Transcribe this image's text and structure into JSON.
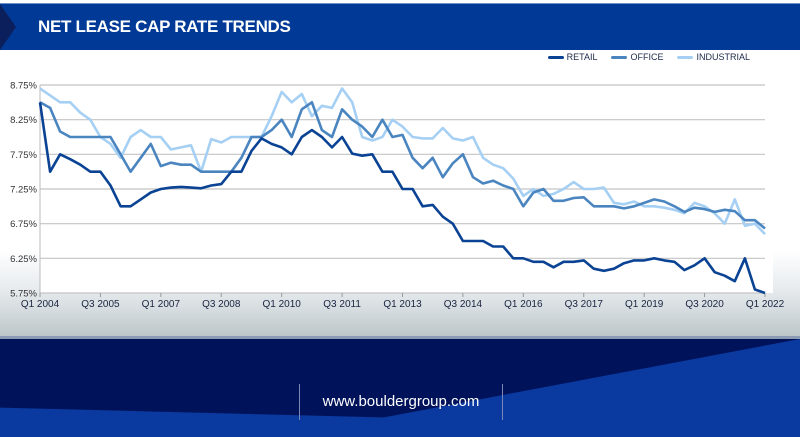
{
  "title": "NET LEASE CAP RATE TRENDS",
  "footer_url": "www.bouldergroup.com",
  "colors": {
    "retail": "#0b4394",
    "office": "#4b85c0",
    "industrial": "#a6d0f3",
    "title_bar": "#003a96",
    "footer": "#00135a"
  },
  "chart_data": {
    "type": "line",
    "title": "NET LEASE CAP RATE TRENDS",
    "xlabel": "",
    "ylabel": "",
    "ylim": [
      5.75,
      8.75
    ],
    "yticks": [
      5.75,
      6.25,
      6.75,
      7.25,
      7.75,
      8.25,
      8.75
    ],
    "ytick_labels": [
      "5.75%",
      "6.25%",
      "6.75%",
      "7.25%",
      "7.75%",
      "8.25%",
      "8.75%"
    ],
    "x_start": "Q1 2004",
    "x_end": "Q1 2022",
    "x_frequency": "quarterly",
    "xtick_labels": [
      "Q1 2004",
      "Q3 2005",
      "Q1 2007",
      "Q3 2008",
      "Q1 2010",
      "Q3 2011",
      "Q1 2013",
      "Q3 2014",
      "Q1 2016",
      "Q3 2017",
      "Q1 2019",
      "Q3 2020",
      "Q1 2022"
    ],
    "grid": true,
    "legend_position": "top-right",
    "series": [
      {
        "name": "RETAIL",
        "values": [
          8.5,
          7.5,
          7.75,
          7.68,
          7.6,
          7.5,
          7.5,
          7.3,
          7.0,
          7.0,
          7.1,
          7.2,
          7.25,
          7.27,
          7.28,
          7.27,
          7.26,
          7.3,
          7.32,
          7.5,
          7.5,
          7.8,
          7.98,
          7.9,
          7.85,
          7.75,
          8.0,
          8.1,
          8.0,
          7.85,
          8.0,
          7.76,
          7.73,
          7.75,
          7.5,
          7.5,
          7.25,
          7.25,
          7.0,
          7.02,
          6.85,
          6.75,
          6.5,
          6.5,
          6.5,
          6.42,
          6.42,
          6.25,
          6.25,
          6.2,
          6.2,
          6.12,
          6.2,
          6.2,
          6.22,
          6.1,
          6.07,
          6.1,
          6.18,
          6.22,
          6.22,
          6.25,
          6.22,
          6.2,
          6.08,
          6.15,
          6.25,
          6.05,
          6.0,
          5.92,
          6.25,
          5.8,
          5.75
        ]
      },
      {
        "name": "OFFICE",
        "values": [
          8.5,
          8.42,
          8.08,
          8.0,
          8.0,
          8.0,
          8.0,
          8.0,
          7.75,
          7.5,
          7.7,
          7.9,
          7.58,
          7.63,
          7.6,
          7.6,
          7.5,
          7.5,
          7.5,
          7.5,
          7.7,
          8.0,
          8.0,
          8.1,
          8.25,
          8.0,
          8.4,
          8.5,
          8.1,
          8.0,
          8.4,
          8.25,
          8.15,
          8.0,
          8.25,
          8.0,
          8.03,
          7.7,
          7.55,
          7.7,
          7.42,
          7.62,
          7.75,
          7.42,
          7.33,
          7.37,
          7.3,
          7.25,
          7.0,
          7.2,
          7.25,
          7.08,
          7.08,
          7.12,
          7.13,
          7.0,
          7.0,
          7.0,
          6.97,
          7.0,
          7.05,
          7.1,
          7.07,
          7.0,
          6.92,
          6.98,
          6.96,
          6.92,
          6.95,
          6.93,
          6.8,
          6.8,
          6.68
        ]
      },
      {
        "name": "INDUSTRIAL",
        "values": [
          8.7,
          8.6,
          8.5,
          8.5,
          8.35,
          8.25,
          8.0,
          7.9,
          7.7,
          8.0,
          8.1,
          8.0,
          8.0,
          7.82,
          7.85,
          7.88,
          7.5,
          7.97,
          7.92,
          8.0,
          8.0,
          8.0,
          8.0,
          8.3,
          8.65,
          8.5,
          8.62,
          8.3,
          8.45,
          8.42,
          8.7,
          8.5,
          8.0,
          7.95,
          8.0,
          8.25,
          8.15,
          8.0,
          7.98,
          7.98,
          8.13,
          7.98,
          7.95,
          8.0,
          7.7,
          7.6,
          7.55,
          7.4,
          7.15,
          7.25,
          7.15,
          7.18,
          7.25,
          7.35,
          7.25,
          7.25,
          7.27,
          7.05,
          7.03,
          7.07,
          7.0,
          7.0,
          6.98,
          6.95,
          6.9,
          7.05,
          7.0,
          6.9,
          6.75,
          7.1,
          6.72,
          6.75,
          6.6
        ]
      }
    ]
  }
}
